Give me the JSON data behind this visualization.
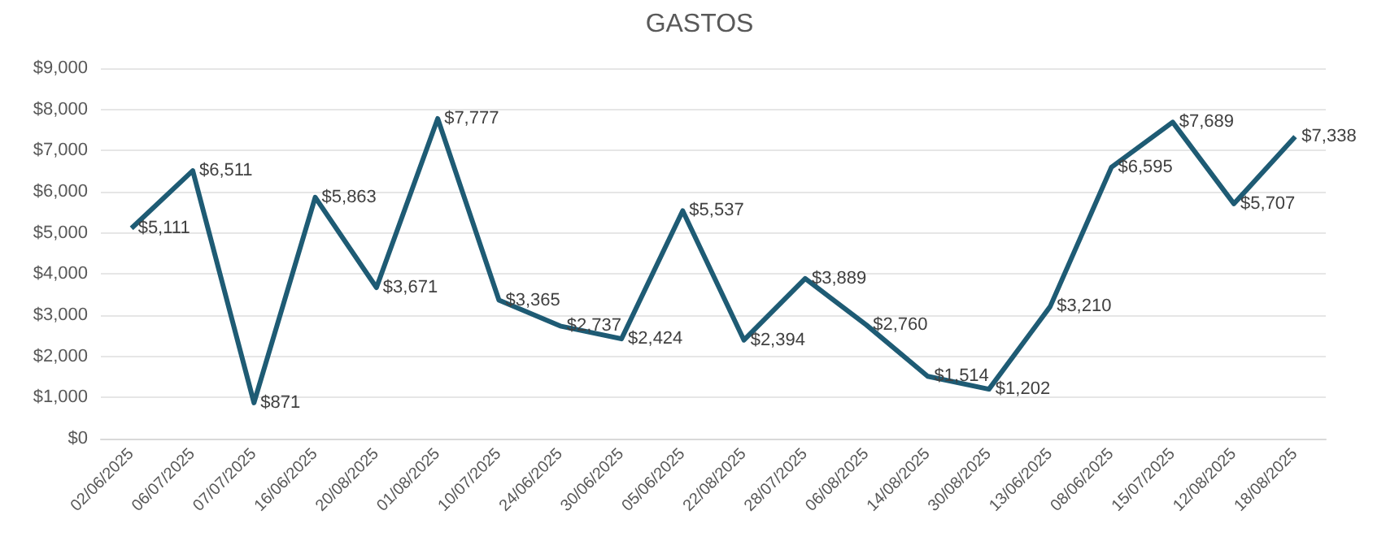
{
  "chart_data": {
    "type": "line",
    "title": "GASTOS",
    "categories": [
      "02/06/2025",
      "06/07/2025",
      "07/07/2025",
      "16/06/2025",
      "20/08/2025",
      "01/08/2025",
      "10/07/2025",
      "24/06/2025",
      "30/06/2025",
      "05/06/2025",
      "22/08/2025",
      "28/07/2025",
      "06/08/2025",
      "14/08/2025",
      "30/08/2025",
      "13/06/2025",
      "08/06/2025",
      "15/07/2025",
      "12/08/2025",
      "18/08/2025"
    ],
    "series": [
      {
        "color": "#1e5b74",
        "values": [
          5111,
          6511,
          871,
          5863,
          3671,
          7777,
          3365,
          2737,
          2424,
          5537,
          2394,
          3889,
          2760,
          1514,
          1202,
          3210,
          6595,
          7689,
          5707,
          7338
        ],
        "value_labels": [
          "$5,111",
          "$6,511",
          "$871",
          "$5,863",
          "$3,671",
          "$7,777",
          "$3,365",
          "$2,737",
          "$2,424",
          "$5,537",
          "$2,394",
          "$3,889",
          "$2,760",
          "$1,514",
          "$1,202",
          "$3,210",
          "$6,595",
          "$7,689",
          "$5,707",
          "$7,338"
        ]
      }
    ],
    "ylim": [
      0,
      9000
    ],
    "yticks": [
      {
        "value": 0,
        "label": "$0"
      },
      {
        "value": 1000,
        "label": "$1,000"
      },
      {
        "value": 2000,
        "label": "$2,000"
      },
      {
        "value": 3000,
        "label": "$3,000"
      },
      {
        "value": 4000,
        "label": "$4,000"
      },
      {
        "value": 5000,
        "label": "$5,000"
      },
      {
        "value": 6000,
        "label": "$6,000"
      },
      {
        "value": 7000,
        "label": "$7,000"
      },
      {
        "value": 8000,
        "label": "$8,000"
      },
      {
        "value": 9000,
        "label": "$9,000"
      }
    ],
    "grid": "y",
    "marker": "none",
    "line_style": "solid"
  }
}
